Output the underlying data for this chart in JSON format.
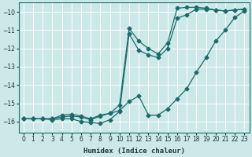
{
  "xlabel": "Humidex (Indice chaleur)",
  "background_color": "#cce8e8",
  "grid_color": "#ffffff",
  "line_color": "#1a6b6b",
  "xlim": [
    -0.5,
    23.5
  ],
  "ylim": [
    -16.6,
    -9.5
  ],
  "yticks": [
    -16,
    -15,
    -14,
    -13,
    -12,
    -11,
    -10
  ],
  "xticks": [
    0,
    1,
    2,
    3,
    4,
    5,
    6,
    7,
    8,
    9,
    10,
    11,
    12,
    13,
    14,
    15,
    16,
    17,
    18,
    19,
    20,
    21,
    22,
    23
  ],
  "line1_x": [
    0,
    1,
    2,
    3,
    4,
    5,
    6,
    7,
    8,
    9,
    10,
    11,
    12,
    13,
    14,
    15,
    16,
    17,
    18,
    19,
    20,
    21,
    22,
    23
  ],
  "line1_y": [
    -15.85,
    -15.85,
    -15.85,
    -15.85,
    -15.65,
    -15.6,
    -15.7,
    -15.85,
    -15.65,
    -15.55,
    -15.4,
    -14.9,
    -14.6,
    -15.65,
    -15.65,
    -15.3,
    -14.75,
    -14.2,
    -13.3,
    -12.5,
    -11.6,
    -11.0,
    -10.3,
    -9.95
  ],
  "line2_x": [
    0,
    1,
    2,
    3,
    4,
    5,
    6,
    7,
    8,
    9,
    10,
    11,
    12,
    13,
    14,
    15,
    16,
    17,
    18,
    19,
    20,
    21,
    22,
    23
  ],
  "line2_y": [
    -15.85,
    -15.85,
    -15.85,
    -15.9,
    -15.85,
    -15.85,
    -16.0,
    -16.05,
    -16.1,
    -15.9,
    -15.45,
    -11.2,
    -12.1,
    -12.35,
    -12.5,
    -12.0,
    -10.35,
    -10.15,
    -9.85,
    -9.85,
    -9.9,
    -9.95,
    -9.9,
    -9.85
  ],
  "line3_x": [
    0,
    1,
    2,
    3,
    4,
    5,
    6,
    7,
    8,
    9,
    10,
    11,
    12,
    13,
    14,
    15,
    16,
    17,
    18,
    19,
    20,
    21,
    22,
    23
  ],
  "line3_y": [
    -15.85,
    -15.85,
    -15.85,
    -15.85,
    -15.75,
    -15.7,
    -15.75,
    -15.9,
    -15.7,
    -15.55,
    -15.1,
    -10.9,
    -11.6,
    -12.0,
    -12.3,
    -11.7,
    -9.8,
    -9.75,
    -9.75,
    -9.8,
    -9.9,
    -9.95,
    -9.9,
    -9.85
  ]
}
